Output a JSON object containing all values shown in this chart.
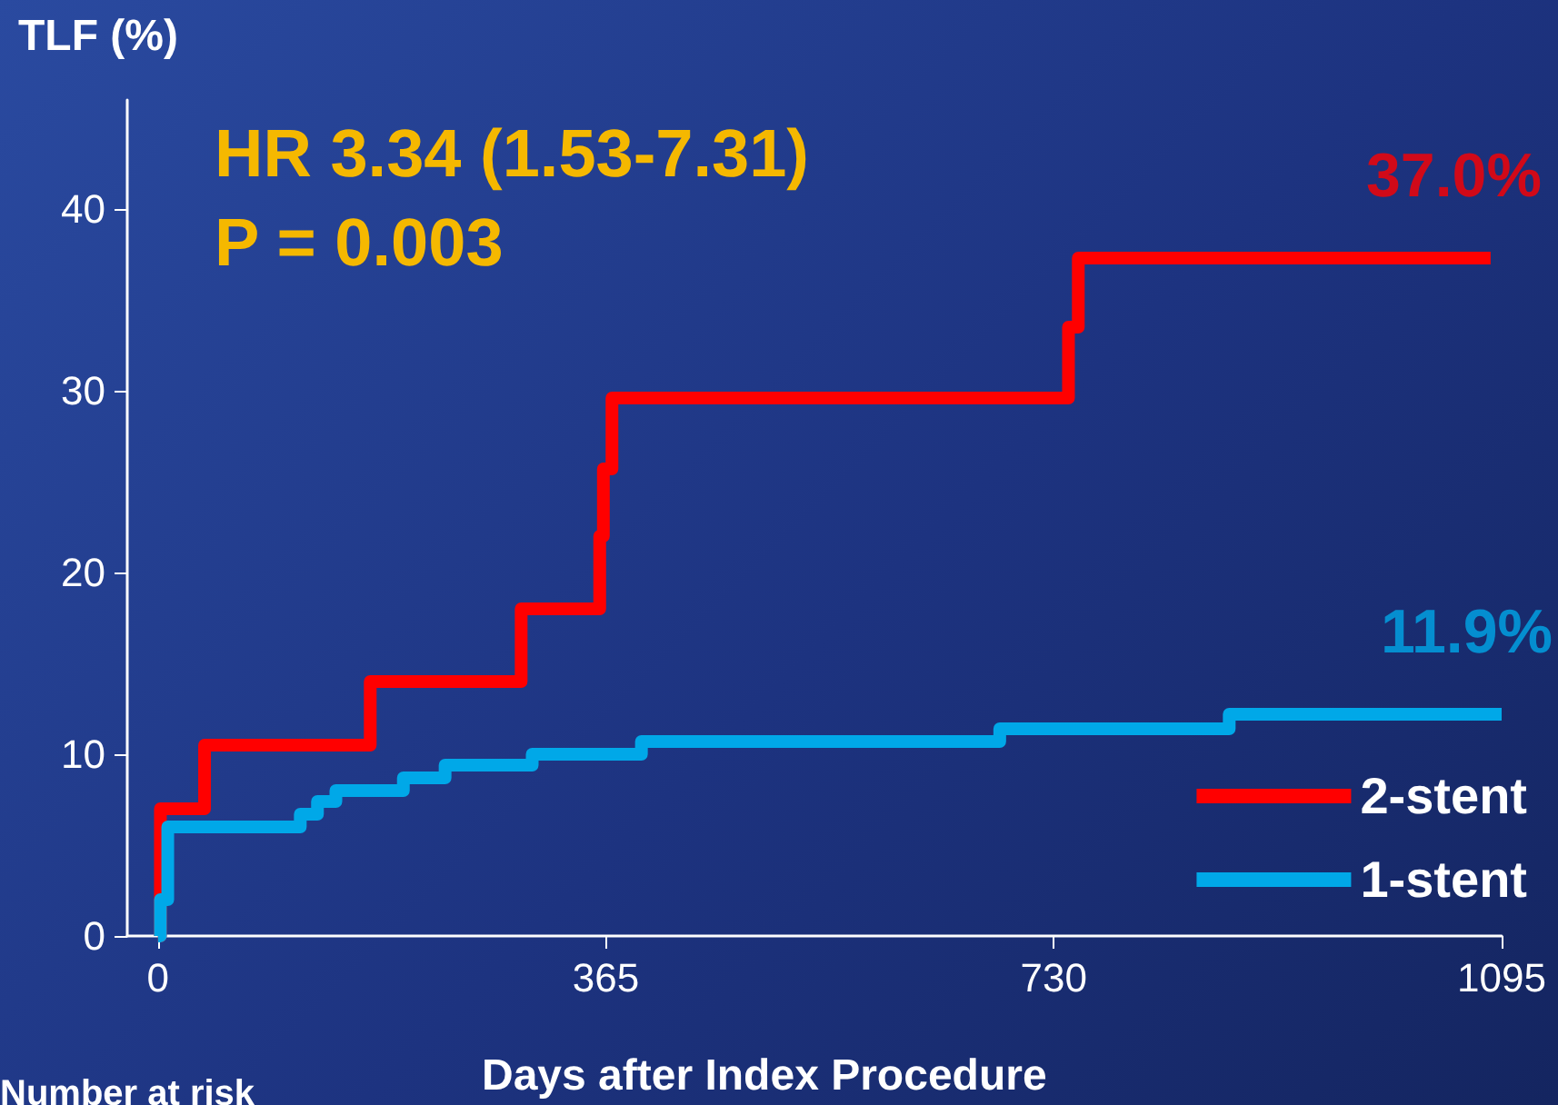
{
  "chart_data": {
    "type": "step",
    "ylabel": "TLF (%)",
    "xlabel": "Days after Index Procedure",
    "xlim": [
      -25,
      1095
    ],
    "xticks": [
      0,
      365,
      730,
      1095
    ],
    "ylim": [
      0,
      46
    ],
    "yticks": [
      0,
      10,
      20,
      30,
      40
    ],
    "grid": false,
    "legend": "bottom right",
    "marker": "none",
    "line_style": "solid",
    "series": [
      {
        "name": "2-stent",
        "color": "#ff0000",
        "x": [
          0,
          2,
          38,
          38,
          173,
          173,
          296,
          296,
          360,
          360,
          363,
          363,
          370,
          370,
          742,
          742,
          750,
          750,
          1086
        ],
        "values": [
          0,
          7,
          7,
          10.5,
          10.5,
          14,
          14,
          18,
          18,
          22,
          22,
          25.7,
          25.7,
          29.6,
          29.6,
          33.5,
          33.5,
          37.3,
          37.3
        ]
      },
      {
        "name": "1-stent",
        "color": "#00a8e8",
        "x": [
          0,
          2,
          8,
          8,
          116,
          116,
          130,
          130,
          145,
          145,
          200,
          200,
          234,
          234,
          305,
          305,
          394,
          394,
          686,
          686,
          873,
          873,
          1095
        ],
        "values": [
          0,
          2,
          2,
          6,
          6,
          6.7,
          6.7,
          7.4,
          7.4,
          8,
          8,
          8.7,
          8.7,
          9.4,
          9.4,
          10,
          10,
          10.7,
          10.7,
          11.4,
          11.4,
          12.2,
          12.2
        ]
      }
    ],
    "annotations": [
      "HR 3.34 (1.53-7.31)",
      "P = 0.003",
      {
        "text": "37.0%",
        "x": 1086,
        "y": 37.3
      },
      {
        "text": "11.9%",
        "x": 1095,
        "y": 12.2
      },
      "Number at risk"
    ]
  }
}
